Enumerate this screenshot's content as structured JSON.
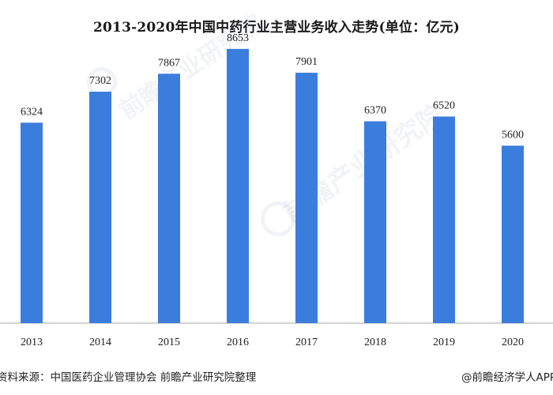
{
  "chart_data": {
    "type": "bar",
    "title": "2013-2020年中国中药行业主营业务收入走势(单位：亿元)",
    "categories": [
      "2013",
      "2014",
      "2015",
      "2016",
      "2017",
      "2018",
      "2019",
      "2020"
    ],
    "values": [
      6324,
      7302,
      7867,
      8653,
      7901,
      6370,
      6520,
      5600
    ],
    "data_labels": [
      "6324",
      "7302",
      "7867",
      "8653",
      "7901",
      "6370",
      "6520",
      "5600"
    ],
    "ylim": [
      0,
      9000
    ],
    "grid": false,
    "bar_color": "#3b7ddd"
  },
  "footer": {
    "source": "资料来源：中国医药企业管理协会 前瞻产业研究院整理",
    "credit": "@前瞻经济学人APP"
  },
  "watermark": {
    "text": "前瞻产业研究院"
  }
}
